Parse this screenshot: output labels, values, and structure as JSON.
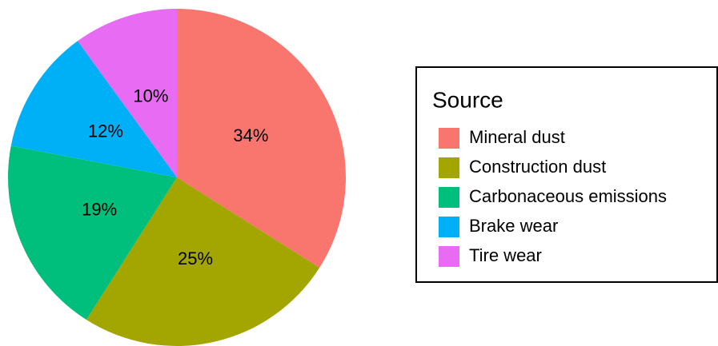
{
  "chart_data": {
    "type": "pie",
    "legend_title": "Source",
    "categories": [
      "Mineral dust",
      "Construction dust",
      "Carbonaceous emissions",
      "Brake wear",
      "Tire wear"
    ],
    "values": [
      34,
      25,
      19,
      12,
      10
    ],
    "value_labels": [
      "34%",
      "25%",
      "19%",
      "12%",
      "10%"
    ],
    "colors": [
      "#F8766D",
      "#A3A500",
      "#00BF7D",
      "#00B0F6",
      "#E76BF3"
    ],
    "legend": "right"
  }
}
